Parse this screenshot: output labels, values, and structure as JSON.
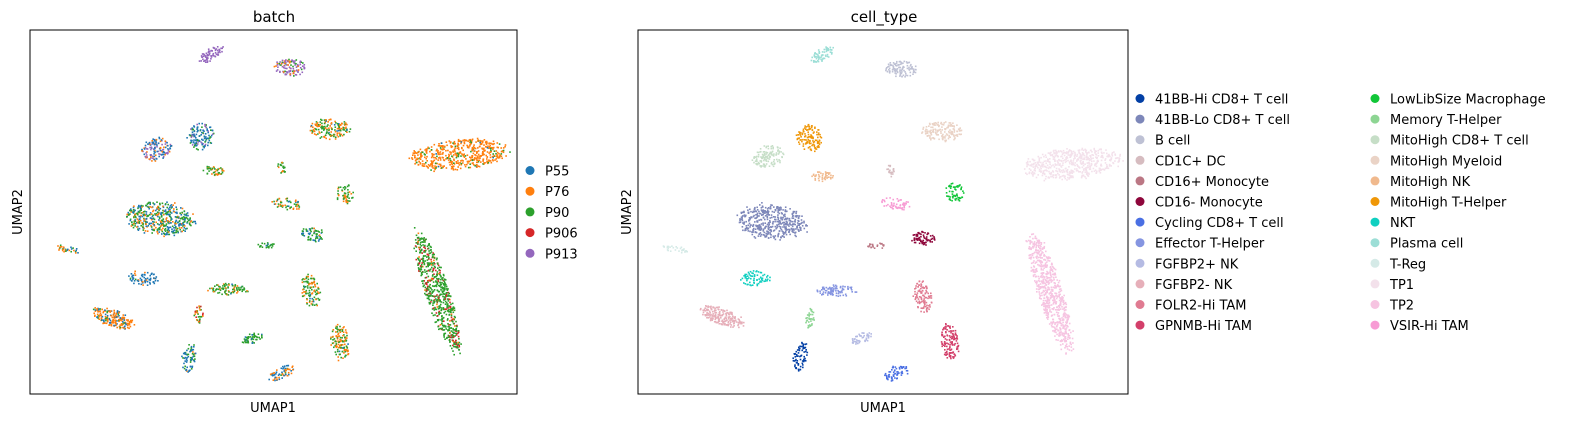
{
  "chart_data": [
    {
      "type": "scatter",
      "title": "batch",
      "xlabel": "UMAP1",
      "ylabel": "UMAP2",
      "xlim": [
        0,
        100
      ],
      "ylim": [
        0,
        100
      ],
      "grid": false,
      "legend_position": "right",
      "legend": [
        {
          "label": "P55",
          "color": "#1f77b4"
        },
        {
          "label": "P76",
          "color": "#ff7f0e"
        },
        {
          "label": "P90",
          "color": "#2ca02c"
        },
        {
          "label": "P906",
          "color": "#d62728"
        },
        {
          "label": "P913",
          "color": "#9467bd"
        }
      ],
      "clusters": [
        {
          "x": 37.0,
          "y": 93.5,
          "w": 6,
          "h": 3.5,
          "angle": -30,
          "n": 70,
          "mix": {
            "P913": 1.0
          }
        },
        {
          "x": 53.5,
          "y": 90.0,
          "w": 7,
          "h": 5,
          "angle": 0,
          "n": 110,
          "mix": {
            "P913": 0.7,
            "P90": 0.15,
            "P76": 0.15
          }
        },
        {
          "x": 61.5,
          "y": 73.0,
          "w": 9,
          "h": 6,
          "angle": 0,
          "n": 160,
          "mix": {
            "P76": 0.5,
            "P90": 0.45,
            "P55": 0.05
          }
        },
        {
          "x": 88.0,
          "y": 66.0,
          "w": 22,
          "h": 9,
          "angle": -5,
          "n": 520,
          "mix": {
            "P76": 0.85,
            "P90": 0.12,
            "P55": 0.03
          }
        },
        {
          "x": 35.0,
          "y": 71.0,
          "w": 6,
          "h": 8,
          "angle": -60,
          "n": 130,
          "mix": {
            "P55": 0.5,
            "P90": 0.3,
            "P913": 0.2
          }
        },
        {
          "x": 26.0,
          "y": 67.5,
          "w": 7,
          "h": 6.5,
          "angle": -20,
          "n": 130,
          "mix": {
            "P55": 0.5,
            "P913": 0.35,
            "P76": 0.15
          }
        },
        {
          "x": 37.5,
          "y": 61.5,
          "w": 5,
          "h": 3,
          "angle": 0,
          "n": 45,
          "mix": {
            "P90": 0.6,
            "P76": 0.4
          }
        },
        {
          "x": 51.5,
          "y": 62.5,
          "w": 1.5,
          "h": 4,
          "angle": -20,
          "n": 20,
          "mix": {
            "P90": 0.6,
            "P76": 0.4
          }
        },
        {
          "x": 64.5,
          "y": 55.0,
          "w": 4,
          "h": 6,
          "angle": -10,
          "n": 55,
          "mix": {
            "P90": 0.65,
            "P76": 0.35
          }
        },
        {
          "x": 52.5,
          "y": 52.5,
          "w": 7,
          "h": 3.5,
          "angle": 10,
          "n": 55,
          "mix": {
            "P90": 0.5,
            "P76": 0.4,
            "P55": 0.1
          }
        },
        {
          "x": 26.5,
          "y": 48.5,
          "w": 15,
          "h": 10,
          "angle": 5,
          "n": 460,
          "mix": {
            "P55": 0.4,
            "P90": 0.35,
            "P76": 0.25
          }
        },
        {
          "x": 58.0,
          "y": 44.0,
          "w": 5.5,
          "h": 4,
          "angle": 5,
          "n": 65,
          "mix": {
            "P90": 0.6,
            "P55": 0.3,
            "P76": 0.1
          }
        },
        {
          "x": 48.5,
          "y": 41.0,
          "w": 4,
          "h": 1.7,
          "angle": 0,
          "n": 22,
          "mix": {
            "P90": 0.8,
            "P55": 0.2
          }
        },
        {
          "x": 7.5,
          "y": 40.0,
          "w": 6,
          "h": 2,
          "angle": 10,
          "n": 30,
          "mix": {
            "P76": 0.5,
            "P90": 0.3,
            "P55": 0.2
          }
        },
        {
          "x": 83.5,
          "y": 28.0,
          "w": 5.5,
          "h": 37,
          "angle": -18,
          "n": 640,
          "mix": {
            "P90": 0.78,
            "P906": 0.17,
            "P76": 0.05
          }
        },
        {
          "x": 23.0,
          "y": 32.0,
          "w": 7,
          "h": 4.5,
          "angle": 0,
          "n": 70,
          "mix": {
            "P55": 0.75,
            "P76": 0.2,
            "P90": 0.05
          }
        },
        {
          "x": 40.5,
          "y": 29.0,
          "w": 9,
          "h": 3.5,
          "angle": 0,
          "n": 90,
          "mix": {
            "P90": 0.7,
            "P76": 0.25,
            "P55": 0.05
          }
        },
        {
          "x": 57.5,
          "y": 28.5,
          "w": 4,
          "h": 10,
          "angle": -10,
          "n": 110,
          "mix": {
            "P76": 0.45,
            "P90": 0.5,
            "P55": 0.05
          }
        },
        {
          "x": 17.0,
          "y": 21.0,
          "w": 10,
          "h": 5,
          "angle": 20,
          "n": 200,
          "mix": {
            "P76": 0.65,
            "P55": 0.25,
            "P90": 0.1
          }
        },
        {
          "x": 34.5,
          "y": 22.0,
          "w": 2,
          "h": 6,
          "angle": 10,
          "n": 35,
          "mix": {
            "P90": 0.4,
            "P906": 0.35,
            "P76": 0.25
          }
        },
        {
          "x": 45.5,
          "y": 15.5,
          "w": 5,
          "h": 3,
          "angle": -20,
          "n": 50,
          "mix": {
            "P90": 0.85,
            "P55": 0.15
          }
        },
        {
          "x": 63.5,
          "y": 14.5,
          "w": 4,
          "h": 11,
          "angle": -5,
          "n": 130,
          "mix": {
            "P76": 0.55,
            "P90": 0.4,
            "P55": 0.05
          }
        },
        {
          "x": 32.5,
          "y": 10.0,
          "w": 3,
          "h": 9,
          "angle": 10,
          "n": 70,
          "mix": {
            "P55": 0.6,
            "P90": 0.3,
            "P76": 0.1
          }
        },
        {
          "x": 51.5,
          "y": 6.0,
          "w": 6,
          "h": 4,
          "angle": -25,
          "n": 65,
          "mix": {
            "P55": 0.6,
            "P76": 0.3,
            "P90": 0.1
          }
        }
      ]
    },
    {
      "type": "scatter",
      "title": "cell_type",
      "xlabel": "UMAP1",
      "ylabel": "UMAP2",
      "xlim": [
        0,
        100
      ],
      "ylim": [
        0,
        100
      ],
      "grid": false,
      "legend_position": "right",
      "legend": [
        {
          "label": "41BB-Hi CD8+ T cell",
          "color": "#023fa5"
        },
        {
          "label": "41BB-Lo CD8+ T cell",
          "color": "#7d87b9"
        },
        {
          "label": "B cell",
          "color": "#bec1d4"
        },
        {
          "label": "CD1C+ DC",
          "color": "#d6bcc0"
        },
        {
          "label": "CD16+ Monocyte",
          "color": "#bb7784"
        },
        {
          "label": "CD16- Monocyte",
          "color": "#8e063b"
        },
        {
          "label": "Cycling CD8+ T cell",
          "color": "#4a6fe3"
        },
        {
          "label": "Effector T-Helper",
          "color": "#8595e1"
        },
        {
          "label": "FGFBP2+ NK",
          "color": "#b5bbe3"
        },
        {
          "label": "FGFBP2- NK",
          "color": "#e6afb9"
        },
        {
          "label": "FOLR2-Hi TAM",
          "color": "#e07b91"
        },
        {
          "label": "GPNMB-Hi TAM",
          "color": "#d33f6a"
        },
        {
          "label": "LowLibSize Macrophage",
          "color": "#11c638"
        },
        {
          "label": "Memory T-Helper",
          "color": "#8dd593"
        },
        {
          "label": "MitoHigh CD8+ T cell",
          "color": "#c6dec7"
        },
        {
          "label": "MitoHigh Myeloid",
          "color": "#ead3c6"
        },
        {
          "label": "MitoHigh NK",
          "color": "#f0b98d"
        },
        {
          "label": "MitoHigh T-Helper",
          "color": "#ef9708"
        },
        {
          "label": "NKT",
          "color": "#0fcfc0"
        },
        {
          "label": "Plasma cell",
          "color": "#9cded6"
        },
        {
          "label": "T-Reg",
          "color": "#d5eae7"
        },
        {
          "label": "TP1",
          "color": "#f3e1eb"
        },
        {
          "label": "TP2",
          "color": "#f6c4e1"
        },
        {
          "label": "VSIR-Hi TAM",
          "color": "#f79cd4"
        }
      ],
      "clusters": [
        {
          "x": 37.5,
          "y": 93.5,
          "w": 6,
          "h": 3.5,
          "angle": -30,
          "n": 70,
          "type": "Plasma cell"
        },
        {
          "x": 53.5,
          "y": 89.5,
          "w": 7,
          "h": 5,
          "angle": 0,
          "n": 110,
          "type": "B cell"
        },
        {
          "x": 62.0,
          "y": 72.5,
          "w": 9,
          "h": 6,
          "angle": 0,
          "n": 160,
          "type": "MitoHigh Myeloid"
        },
        {
          "x": 88.5,
          "y": 63.5,
          "w": 22,
          "h": 9,
          "angle": -5,
          "n": 560,
          "type": "TP1"
        },
        {
          "x": 35.0,
          "y": 70.5,
          "w": 6,
          "h": 8,
          "angle": -60,
          "n": 130,
          "type": "MitoHigh T-Helper"
        },
        {
          "x": 26.5,
          "y": 65.5,
          "w": 7,
          "h": 6.5,
          "angle": -20,
          "n": 130,
          "type": "MitoHigh CD8+ T cell"
        },
        {
          "x": 37.5,
          "y": 60.0,
          "w": 5,
          "h": 3,
          "angle": 0,
          "n": 45,
          "type": "MitoHigh NK"
        },
        {
          "x": 51.5,
          "y": 61.5,
          "w": 1.5,
          "h": 4,
          "angle": -20,
          "n": 20,
          "type": "CD1C+ DC"
        },
        {
          "x": 64.5,
          "y": 55.5,
          "w": 4,
          "h": 6,
          "angle": -10,
          "n": 60,
          "type": "LowLibSize Macrophage"
        },
        {
          "x": 52.5,
          "y": 52.5,
          "w": 7,
          "h": 3.5,
          "angle": 10,
          "n": 55,
          "type": "VSIR-Hi TAM"
        },
        {
          "x": 27.0,
          "y": 47.5,
          "w": 15,
          "h": 10,
          "angle": 5,
          "n": 460,
          "type": "41BB-Lo CD8+ T cell"
        },
        {
          "x": 58.0,
          "y": 43.0,
          "w": 5.5,
          "h": 4,
          "angle": 5,
          "n": 75,
          "type": "CD16- Monocyte"
        },
        {
          "x": 48.5,
          "y": 41.0,
          "w": 4,
          "h": 1.7,
          "angle": 0,
          "n": 22,
          "type": "CD16+ Monocyte"
        },
        {
          "x": 7.5,
          "y": 40.0,
          "w": 6,
          "h": 2,
          "angle": 10,
          "n": 30,
          "type": "T-Reg"
        },
        {
          "x": 84.0,
          "y": 28.0,
          "w": 5.5,
          "h": 37,
          "angle": -18,
          "n": 700,
          "type": "TP2"
        },
        {
          "x": 23.5,
          "y": 32.0,
          "w": 7,
          "h": 4.5,
          "angle": 0,
          "n": 70,
          "type": "NKT"
        },
        {
          "x": 40.5,
          "y": 28.5,
          "w": 9,
          "h": 3.5,
          "angle": 0,
          "n": 90,
          "type": "Effector T-Helper"
        },
        {
          "x": 58.0,
          "y": 27.0,
          "w": 4,
          "h": 10,
          "angle": -10,
          "n": 110,
          "type": "FOLR2-Hi TAM"
        },
        {
          "x": 17.0,
          "y": 21.5,
          "w": 10,
          "h": 5,
          "angle": 20,
          "n": 200,
          "type": "FGFBP2- NK"
        },
        {
          "x": 35.0,
          "y": 21.0,
          "w": 2,
          "h": 6,
          "angle": 10,
          "n": 35,
          "type": "Memory T-Helper"
        },
        {
          "x": 45.5,
          "y": 15.5,
          "w": 5,
          "h": 3,
          "angle": -20,
          "n": 50,
          "type": "FGFBP2+ NK"
        },
        {
          "x": 63.5,
          "y": 14.5,
          "w": 4,
          "h": 11,
          "angle": -5,
          "n": 130,
          "type": "GPNMB-Hi TAM"
        },
        {
          "x": 33.0,
          "y": 10.5,
          "w": 3,
          "h": 9,
          "angle": 10,
          "n": 70,
          "type": "41BB-Hi CD8+ T cell"
        },
        {
          "x": 52.5,
          "y": 6.0,
          "w": 6,
          "h": 4,
          "angle": -25,
          "n": 65,
          "type": "Cycling CD8+ T cell"
        }
      ]
    }
  ]
}
